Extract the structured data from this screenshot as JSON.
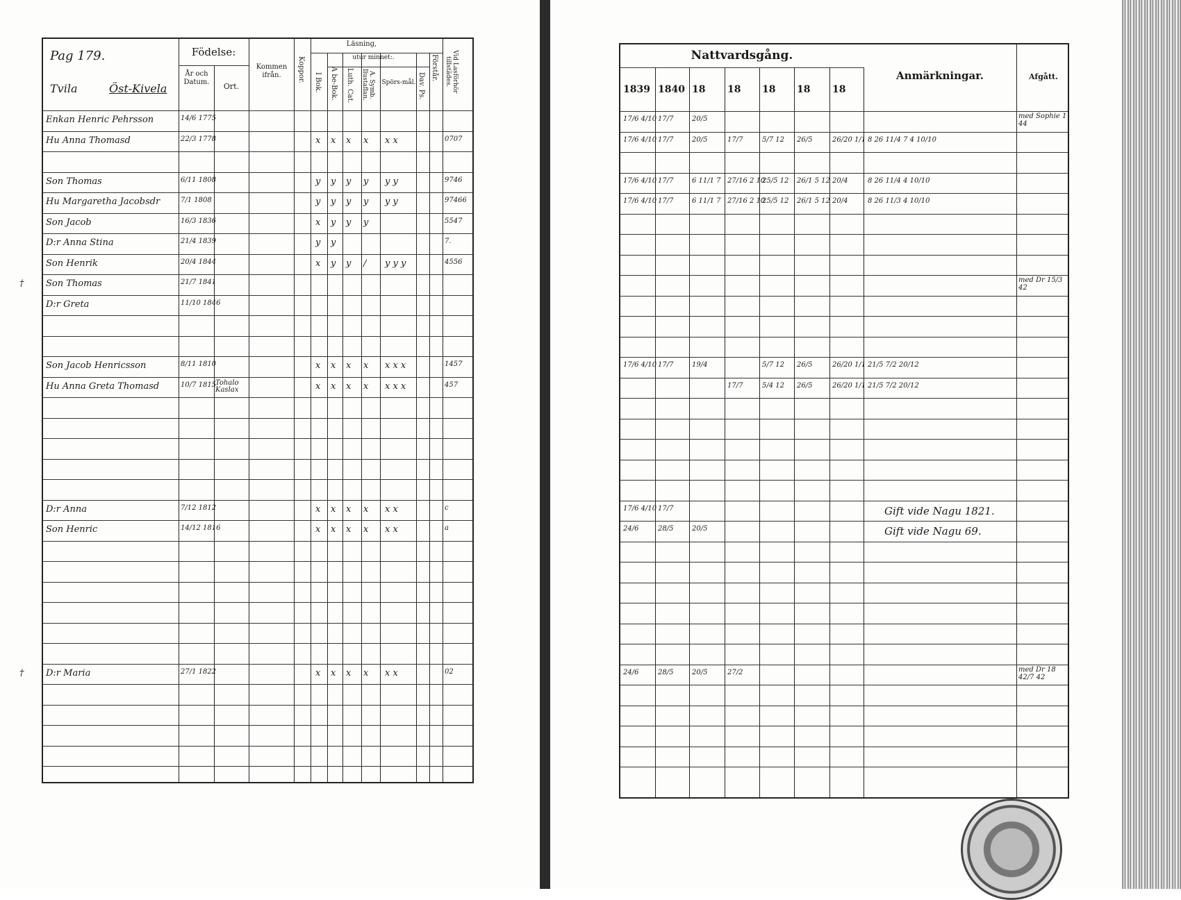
{
  "left": {
    "title_hand": "Pag 179.",
    "by_hand": "Tvila",
    "place_hand": "Öst-Kivela",
    "headers": {
      "fodelse": "Födelse:",
      "ar_datum": "År och Datum.",
      "ort": "Ort.",
      "kommen": "Kommen ifrån.",
      "koppor": "Koppor.",
      "lasning": "Läsning,",
      "utur_minnet": "utur minnet:.",
      "i_bok": "I Bok.",
      "abc": "A be-Bok.",
      "luth": "Luth. Cat.",
      "symb": "A. Symb. Ilustaflan.",
      "spors": "Spörs-mål.",
      "dav": "Dav. Ps.",
      "forstar": "Förstår.",
      "lagforhor": "Vid Lasförhör tillstädes."
    },
    "rows": [
      {
        "i": 0,
        "name": "Enkan Henric Pehrsson",
        "birth": "14/6 1775"
      },
      {
        "i": 1,
        "name": "Hu Anna Thomasd",
        "birth": "22/3 1778",
        "marks": [
          "x",
          "x",
          "x",
          "x",
          "x x"
        ],
        "lag": "0707"
      },
      {
        "i": 3,
        "name": "Son Thomas",
        "birth": "6/11 1808",
        "marks": [
          "y",
          "y",
          "y",
          "y",
          "y y"
        ],
        "lag": "9746"
      },
      {
        "i": 4,
        "name": "Hu Margaretha Jacobsdr",
        "birth": "7/1 1808",
        "marks": [
          "y",
          "y",
          "y",
          "y",
          "y y"
        ],
        "lag": "97466"
      },
      {
        "i": 5,
        "name": "Son Jacob",
        "birth": "16/3 1836",
        "marks": [
          "x",
          "y",
          "y",
          "y",
          ""
        ],
        "lag": "5547"
      },
      {
        "i": 6,
        "name": "D:r Anna Stina",
        "birth": "21/4 1839",
        "marks": [
          "y",
          "y",
          "",
          "",
          ""
        ],
        "lag": "7."
      },
      {
        "i": 7,
        "name": "Son Henrik",
        "birth": "20/4 1844",
        "marks": [
          "x",
          "y",
          "y",
          "/",
          "y y y"
        ],
        "lag": "4556"
      },
      {
        "i": 8,
        "name": "Son Thomas",
        "birth": "21/7 1841",
        "margin": "†"
      },
      {
        "i": 9,
        "name": "D:r Greta",
        "birth": "11/10 1846"
      },
      {
        "i": 12,
        "name": "Son Jacob Henricsson",
        "birth": "8/11 1810",
        "marks": [
          "x",
          "x",
          "x",
          "x",
          "x x x"
        ],
        "lag": "1457"
      },
      {
        "i": 13,
        "name": "Hu Anna Greta Thomasd",
        "birth": "10/7 1815",
        "ort": "Tohalo Kaslax",
        "marks": [
          "x",
          "x",
          "x",
          "x",
          "x x x"
        ],
        "lag": "457"
      },
      {
        "i": 19,
        "name": "D:r Anna",
        "birth": "7/12 1812",
        "marks": [
          "x",
          "x",
          "x",
          "x",
          "x x"
        ],
        "lag": "c"
      },
      {
        "i": 20,
        "name": "Son Henric",
        "birth": "14/12 1816",
        "marks": [
          "x",
          "x",
          "x",
          "x",
          "x x"
        ],
        "lag": "a"
      },
      {
        "i": 27,
        "name": "D:r Maria",
        "birth": "27/1 1822",
        "marks": [
          "x",
          "x",
          "x",
          "x",
          "x x"
        ],
        "lag": "02",
        "margin": "†"
      }
    ]
  },
  "right": {
    "nattvard": "Nattvardsgång.",
    "years": [
      "1839",
      "1840",
      "18",
      "18",
      "18",
      "18",
      "18"
    ],
    "anmarkningar": "Anmärkningar.",
    "afgatt": "Afgått.",
    "rows": [
      {
        "i": 0,
        "n": [
          "17/6 4/10",
          "17/7",
          "20/5"
        ],
        "afg": "med Sophie 1 44"
      },
      {
        "i": 1,
        "n": [
          "17/6 4/10",
          "17/7",
          "20/5",
          "17/7",
          "5/7 12",
          "26/5",
          "26/20 1/1"
        ],
        "anm": "8 26 11/4 7 4  10/10"
      },
      {
        "i": 3,
        "n": [
          "17/6 4/10",
          "17/7",
          "6 11/1 7",
          "27/16 2 10",
          "25/5 12",
          "26/1 5 12",
          "20/4"
        ],
        "anm": "8 26 11/4 4  10/10"
      },
      {
        "i": 4,
        "n": [
          "17/6 4/10",
          "17/7",
          "6 11/1 7",
          "27/16 2 10",
          "25/5 12",
          "26/1 5 12",
          "20/4"
        ],
        "anm": "8 26 11/3 4  10/10"
      },
      {
        "i": 8,
        "afg": "med Dr 15/3 42"
      },
      {
        "i": 12,
        "n": [
          "17/6 4/10",
          "17/7",
          "19/4",
          "",
          "5/7 12",
          "26/5",
          "26/20 1/1"
        ],
        "anm": "21/5 7/2  20/12"
      },
      {
        "i": 13,
        "n": [
          "",
          "",
          "",
          "17/7",
          "5/4 12",
          "26/5",
          "26/20 1/1"
        ],
        "anm": "21/5 7/2  20/12"
      },
      {
        "i": 19,
        "n": [
          "17/6 4/10",
          "17/7"
        ],
        "anm": "Gift vide Nagu 1821."
      },
      {
        "i": 20,
        "n": [
          "24/6",
          "28/5",
          "20/5"
        ],
        "anm": "Gift vide Nagu 69."
      },
      {
        "i": 27,
        "n": [
          "24/6",
          "28/5",
          "20/5",
          "27/2"
        ],
        "afg": "med Dr 18 42/7 42"
      }
    ]
  }
}
